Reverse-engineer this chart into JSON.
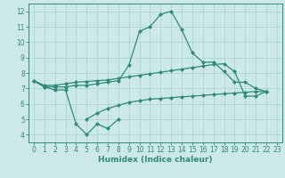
{
  "title": "",
  "xlabel": "Humidex (Indice chaleur)",
  "line_color": "#2e8b7a",
  "bg_color": "#cce8e8",
  "grid_color": "#a8d0d0",
  "ylim": [
    3.5,
    12.5
  ],
  "xlim": [
    -0.5,
    23.5
  ],
  "yticks": [
    4,
    5,
    6,
    7,
    8,
    9,
    10,
    11,
    12
  ],
  "xticks": [
    0,
    1,
    2,
    3,
    4,
    5,
    6,
    7,
    8,
    9,
    10,
    11,
    12,
    13,
    14,
    15,
    16,
    17,
    18,
    19,
    20,
    21,
    22,
    23
  ],
  "line1_x": [
    0,
    1,
    2,
    3,
    4,
    5,
    6,
    7,
    8
  ],
  "line1_y": [
    7.5,
    7.1,
    6.9,
    6.9,
    4.7,
    4.0,
    4.7,
    4.4,
    5.0
  ],
  "line2_x": [
    0,
    1,
    2,
    3,
    4,
    5,
    6,
    7,
    8,
    9,
    10,
    11,
    12,
    13,
    14,
    15,
    16,
    17,
    18,
    19,
    20,
    21,
    22
  ],
  "line2_y": [
    7.5,
    7.1,
    7.1,
    7.1,
    7.2,
    7.2,
    7.3,
    7.4,
    7.5,
    8.5,
    10.7,
    11.0,
    11.8,
    12.0,
    10.8,
    9.3,
    8.7,
    8.7,
    8.1,
    7.4,
    7.4,
    7.0,
    6.8
  ],
  "line3_x": [
    0,
    1,
    2,
    3,
    4,
    5,
    6,
    7,
    8,
    9,
    10,
    11,
    12,
    13,
    14,
    15,
    16,
    17,
    18,
    19,
    20,
    21,
    22
  ],
  "line3_y": [
    7.5,
    7.2,
    7.2,
    7.3,
    7.4,
    7.45,
    7.5,
    7.55,
    7.65,
    7.75,
    7.85,
    7.95,
    8.05,
    8.15,
    8.25,
    8.35,
    8.45,
    8.55,
    8.6,
    8.1,
    6.5,
    6.5,
    6.8
  ],
  "line4_x": [
    5,
    6,
    7,
    8,
    9,
    10,
    11,
    12,
    13,
    14,
    15,
    16,
    17,
    18,
    19,
    20,
    21,
    22
  ],
  "line4_y": [
    5.0,
    5.4,
    5.7,
    5.9,
    6.1,
    6.2,
    6.3,
    6.35,
    6.4,
    6.45,
    6.5,
    6.55,
    6.6,
    6.65,
    6.7,
    6.75,
    6.8,
    6.8
  ],
  "tick_fontsize": 5.5,
  "xlabel_fontsize": 6.5,
  "lw": 0.9,
  "ms": 2.0
}
